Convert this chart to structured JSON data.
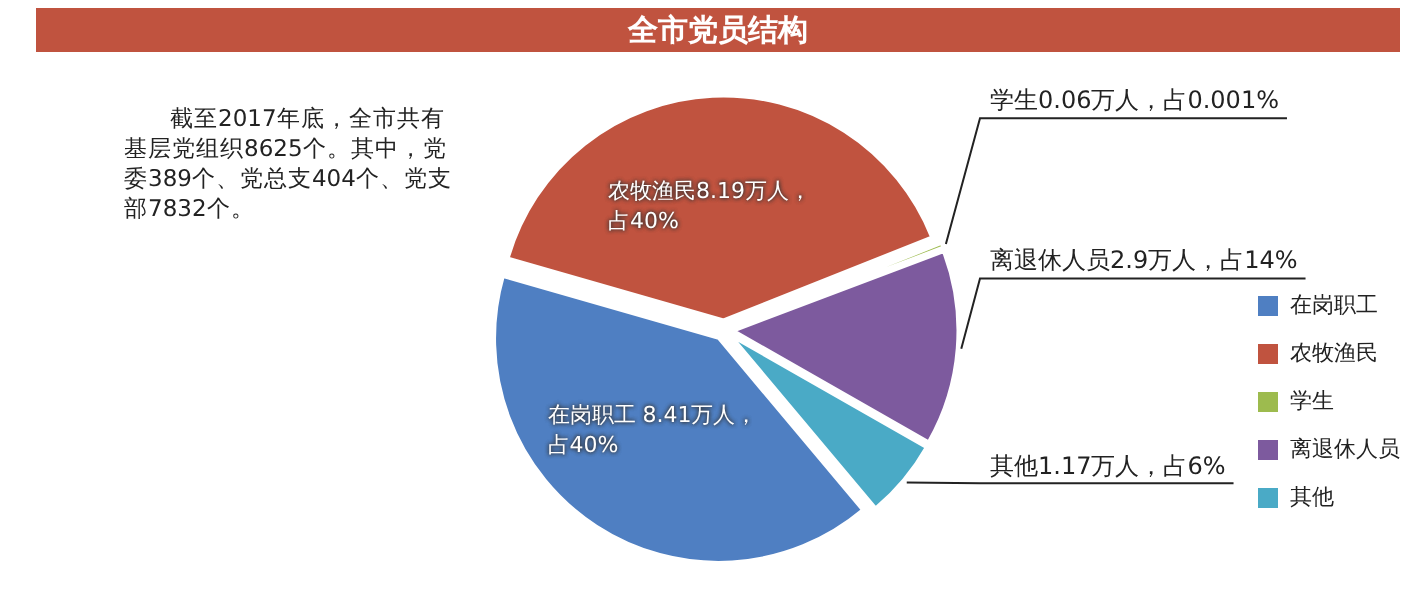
{
  "chart_data": {
    "type": "pie",
    "title": "全市党员结构",
    "categories": [
      "在岗职工",
      "农牧渔民",
      "学生",
      "离退休人员",
      "其他"
    ],
    "values": [
      8.41,
      8.19,
      0.06,
      2.9,
      1.17
    ],
    "colors": [
      "#4f7fc2",
      "#c0533f",
      "#9dbb4e",
      "#7d5a9e",
      "#4aaac6"
    ],
    "value_labels": [
      "在岗职工 8.41万人，占40%",
      "农牧渔民8.19万人，占40%",
      "学生0.06万人，占0.001%",
      "离退休人员2.9万人，占14%",
      "其他1.17万人，占6%"
    ],
    "annotations": [
      "截至2017年底，全市共有基层党组织8625个。其中，党委389个、党总支404个、党支部7832个。"
    ],
    "legend": "right"
  }
}
